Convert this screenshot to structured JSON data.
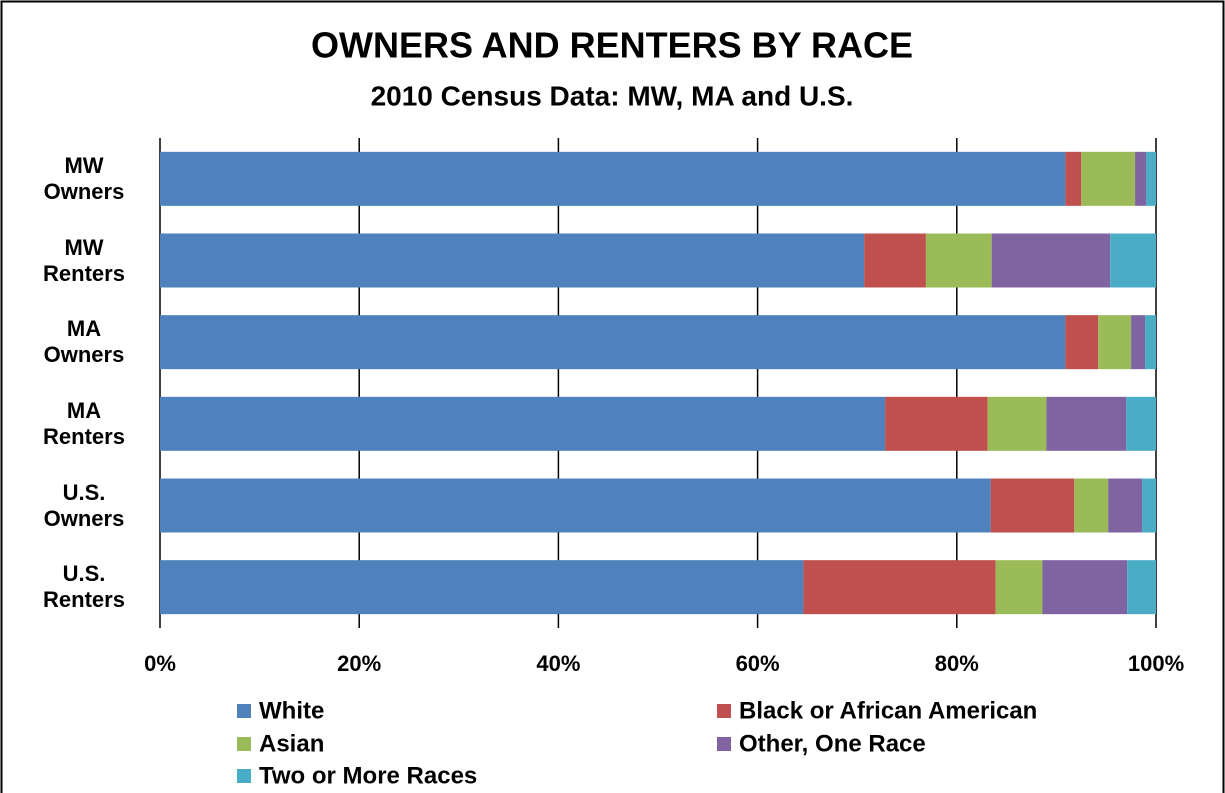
{
  "chart_data": {
    "type": "stacked-bar-horizontal",
    "title": "OWNERS AND RENTERS BY RACE",
    "subtitle": "2010 Census Data: MW, MA and U.S.",
    "categories": [
      "MW Owners",
      "MW Renters",
      "MA Owners",
      "MA Renters",
      "U.S. Owners",
      "U.S. Renters"
    ],
    "series": [
      {
        "name": "White",
        "color": "#4f81bd",
        "values": [
          90.9,
          70.7,
          90.9,
          72.8,
          83.4,
          64.6
        ]
      },
      {
        "name": "Black or African American",
        "color": "#c0504d",
        "values": [
          1.6,
          6.2,
          3.3,
          10.3,
          8.4,
          19.3
        ]
      },
      {
        "name": "Asian",
        "color": "#9bbb59",
        "values": [
          5.4,
          6.6,
          3.3,
          5.9,
          3.4,
          4.7
        ]
      },
      {
        "name": "Other, One Race",
        "color": "#8064a2",
        "values": [
          1.1,
          11.9,
          1.4,
          8.0,
          3.4,
          8.5
        ]
      },
      {
        "name": "Two or More Races",
        "color": "#4bacc6",
        "values": [
          1.0,
          4.6,
          1.1,
          3.0,
          1.4,
          2.9
        ]
      }
    ],
    "xlim": [
      0,
      100
    ],
    "xticks": [
      {
        "value": 0,
        "label": "0%"
      },
      {
        "value": 20,
        "label": "20%"
      },
      {
        "value": 40,
        "label": "40%"
      },
      {
        "value": 60,
        "label": "60%"
      },
      {
        "value": 80,
        "label": "80%"
      },
      {
        "value": 100,
        "label": "100%"
      }
    ],
    "grid": true,
    "legend": "bottom"
  }
}
